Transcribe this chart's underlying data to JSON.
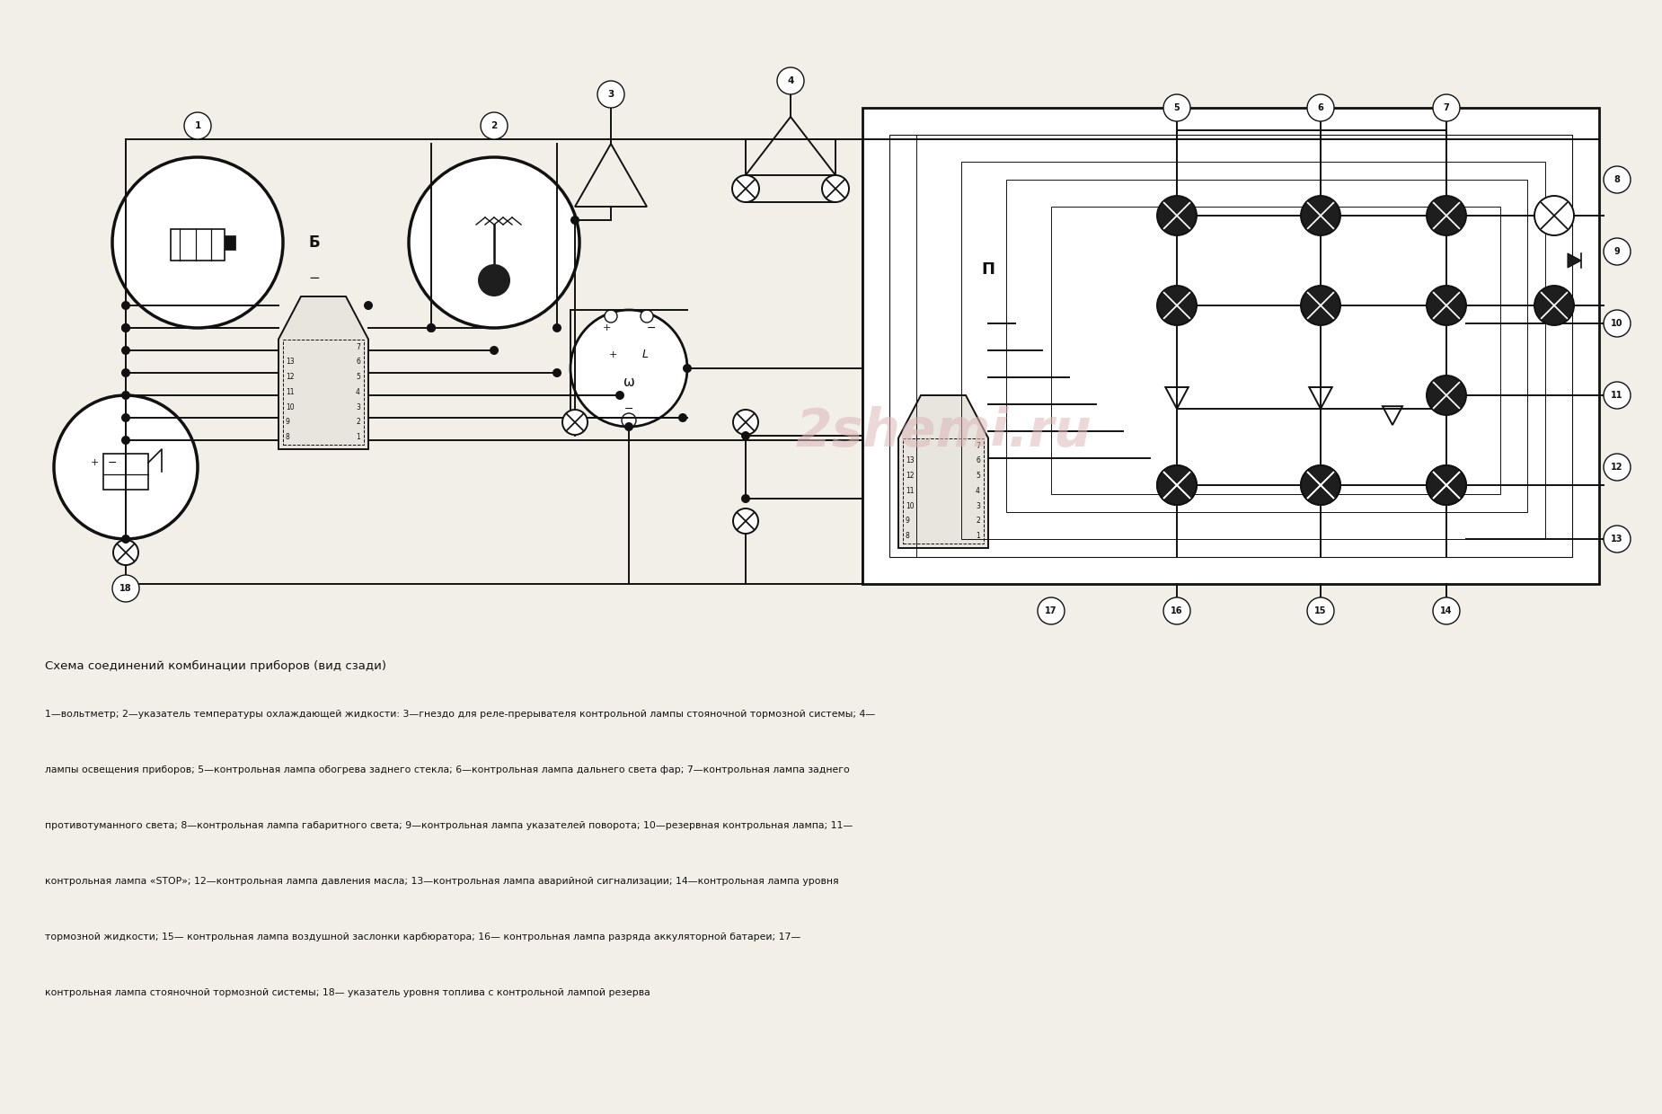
{
  "title": "Схема соединений комбинации приборов (вид сзади)",
  "desc": [
    "1—вольтметр; 2—указатель температуры охлаждающей жидкости: 3—гнездо для реле-прерывателя контрольной лампы стояночной тормозной системы; 4—",
    "лампы освещения приборов; 5—контрольная лампа обогрева заднего стекла; 6—контрольная лампа дальнего света фар; 7—контрольная лампа заднего",
    "противотуманного света; 8—контрольная лампа габаритного света; 9—контрольная лампа указателей поворота; 10—резервная контрольная лампа; 11—",
    "контрольная лампа «STOP»; 12—контрольная лампа давления масла; 13—контрольная лампа аварийной сигнализации; 14—контрольная лампа уровня",
    "тормозной жидкости; 15— контрольная лампа воздушной заслонки карбюратора; 16— контрольная лампа разряда аккуляторной батареи; 17—",
    "контрольная лампа стояночной тормозной системы; 18— указатель уровня топлива с контрольной лампой резерва"
  ],
  "bg_color": "#f2efe9",
  "line_color": "#111111",
  "dark_fill": "#1e1e1e",
  "watermark_text": "2shemi.ru",
  "watermark_color": "#ddb8b8"
}
